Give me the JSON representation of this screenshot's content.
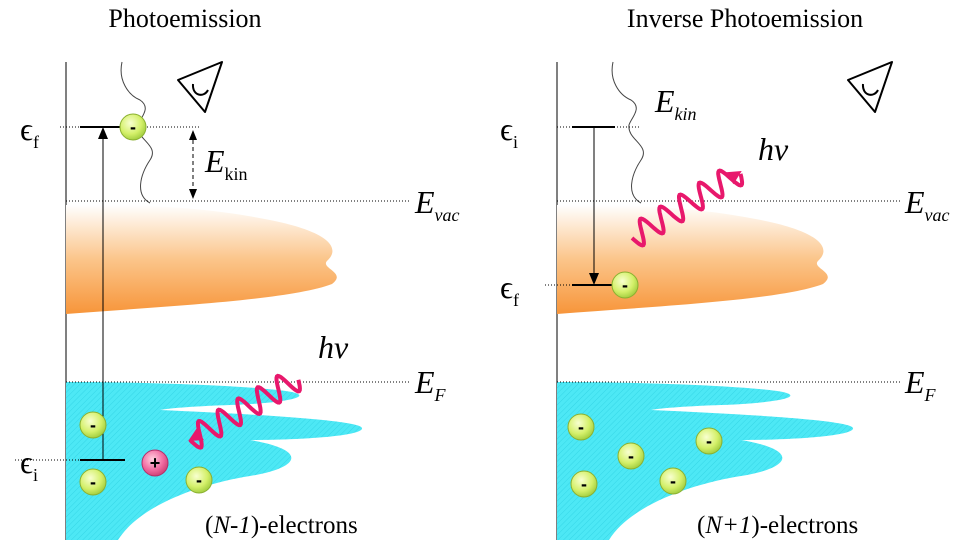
{
  "panels": [
    {
      "title": "Photoemission",
      "eps_f": {
        "symbol": "ϵ",
        "sub": "f"
      },
      "eps_i": {
        "symbol": "ϵ",
        "sub": "i"
      },
      "e_kin": {
        "symbol": "E",
        "sub": "kin"
      },
      "e_vac": {
        "symbol": "E",
        "sub": "vac"
      },
      "e_fermi": {
        "symbol": "E",
        "sub": "F"
      },
      "photon": "hν",
      "electrons": {
        "open": "(",
        "count": "N-1",
        "close": ")-electrons"
      },
      "charges": [
        "-",
        "-",
        "-",
        "-",
        "+"
      ]
    },
    {
      "title": "Inverse Photoemission",
      "eps_f": {
        "symbol": "ϵ",
        "sub": "f"
      },
      "eps_i": {
        "symbol": "ϵ",
        "sub": "i"
      },
      "e_kin": {
        "symbol": "E",
        "sub": "kin"
      },
      "e_vac": {
        "symbol": "E",
        "sub": "vac"
      },
      "e_fermi": {
        "symbol": "E",
        "sub": "F"
      },
      "photon": "hν",
      "electrons": {
        "open": "(",
        "count": "N+1",
        "close": ")-electrons"
      },
      "charges": [
        "-",
        "-",
        "-",
        "-",
        "-",
        "-"
      ]
    }
  ]
}
